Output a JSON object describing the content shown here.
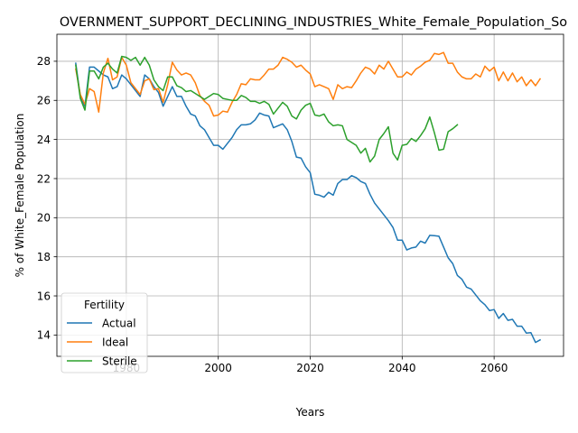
{
  "chart_data": {
    "type": "line",
    "title": "OVERNMENT_SUPPORT_DECLINING_INDUSTRIES_White_Female_Population_So",
    "xlabel": "Years",
    "ylabel": "% of White_Female Population",
    "xlim": [
      1964.9,
      2075.1
    ],
    "ylim": [
      12.91,
      29.38
    ],
    "xticks": [
      1980,
      2000,
      2020,
      2040,
      2060
    ],
    "yticks": [
      14,
      16,
      18,
      20,
      22,
      24,
      26,
      28
    ],
    "grid": true,
    "legend": {
      "title": "Fertility",
      "position": "lower left"
    },
    "series": [
      {
        "name": "Actual",
        "color": "#1f77b4",
        "x": [
          1969,
          1970,
          1971,
          1972,
          1973,
          1974,
          1975,
          1976,
          1977,
          1978,
          1979,
          1980,
          1981,
          1982,
          1983,
          1984,
          1985,
          1986,
          1987,
          1988,
          1989,
          1990,
          1991,
          1992,
          1993,
          1994,
          1995,
          1996,
          1997,
          1998,
          1999,
          2000,
          2001,
          2002,
          2003,
          2004,
          2005,
          2006,
          2007,
          2008,
          2009,
          2010,
          2011,
          2012,
          2013,
          2014,
          2015,
          2016,
          2017,
          2018,
          2019,
          2020,
          2021,
          2022,
          2023,
          2024,
          2025,
          2026,
          2027,
          2028,
          2029,
          2030,
          2031,
          2032,
          2033,
          2034,
          2035,
          2036,
          2037,
          2038,
          2039,
          2040,
          2041,
          2042,
          2043,
          2044,
          2045,
          2046,
          2047,
          2048,
          2049,
          2050,
          2051,
          2052,
          2053,
          2054,
          2055,
          2056,
          2057,
          2058,
          2059,
          2060,
          2061,
          2062,
          2063,
          2064,
          2065,
          2066,
          2067,
          2068,
          2069,
          2070
        ],
        "y": [
          27.9,
          26.2,
          25.7,
          27.7,
          27.7,
          27.5,
          27.3,
          27.2,
          26.6,
          26.7,
          27.3,
          27.1,
          26.8,
          26.5,
          26.2,
          27.3,
          27.1,
          26.7,
          26.4,
          25.7,
          26.2,
          26.7,
          26.2,
          26.2,
          25.7,
          25.3,
          25.2,
          24.7,
          24.5,
          24.1,
          23.7,
          23.7,
          23.5,
          23.8,
          24.1,
          24.5,
          24.75,
          24.75,
          24.8,
          25.0,
          25.35,
          25.25,
          25.2,
          24.6,
          24.7,
          24.8,
          24.5,
          23.9,
          23.1,
          23.05,
          22.6,
          22.3,
          21.2,
          21.15,
          21.05,
          21.3,
          21.15,
          21.75,
          21.95,
          21.95,
          22.15,
          22.05,
          21.85,
          21.75,
          21.2,
          20.75,
          20.45,
          20.15,
          19.85,
          19.5,
          18.85,
          18.85,
          18.35,
          18.45,
          18.5,
          18.8,
          18.7,
          19.1,
          19.08,
          19.05,
          18.5,
          17.95,
          17.65,
          17.05,
          16.85,
          16.45,
          16.35,
          16.05,
          15.75,
          15.55,
          15.25,
          15.3,
          14.85,
          15.1,
          14.75,
          14.8,
          14.45,
          14.45,
          14.1,
          14.12,
          13.62,
          13.75
        ]
      },
      {
        "name": "Ideal",
        "color": "#ff7f0e",
        "x": [
          1969,
          1970,
          1971,
          1972,
          1973,
          1974,
          1975,
          1976,
          1977,
          1978,
          1979,
          1980,
          1981,
          1982,
          1983,
          1984,
          1985,
          1986,
          1987,
          1988,
          1989,
          1990,
          1991,
          1992,
          1993,
          1994,
          1995,
          1996,
          1997,
          1998,
          1999,
          2000,
          2001,
          2002,
          2003,
          2004,
          2005,
          2006,
          2007,
          2008,
          2009,
          2010,
          2011,
          2012,
          2013,
          2014,
          2015,
          2016,
          2017,
          2018,
          2019,
          2020,
          2021,
          2022,
          2023,
          2024,
          2025,
          2026,
          2027,
          2028,
          2029,
          2030,
          2031,
          2032,
          2033,
          2034,
          2035,
          2036,
          2037,
          2038,
          2039,
          2040,
          2041,
          2042,
          2043,
          2044,
          2045,
          2046,
          2047,
          2048,
          2049,
          2050,
          2051,
          2052,
          2053,
          2054,
          2055,
          2056,
          2057,
          2058,
          2059,
          2060,
          2061,
          2062,
          2063,
          2064,
          2065,
          2066,
          2067,
          2068,
          2069,
          2070
        ],
        "y": [
          27.6,
          26.3,
          25.8,
          26.6,
          26.45,
          25.4,
          27.4,
          28.15,
          27.05,
          27.2,
          28.2,
          27.8,
          26.9,
          26.6,
          26.3,
          27.0,
          27.1,
          26.55,
          26.6,
          25.9,
          26.8,
          27.95,
          27.55,
          27.3,
          27.4,
          27.3,
          26.9,
          26.25,
          25.95,
          25.75,
          25.2,
          25.25,
          25.45,
          25.4,
          25.9,
          26.3,
          26.85,
          26.8,
          27.1,
          27.05,
          27.05,
          27.3,
          27.6,
          27.6,
          27.8,
          28.2,
          28.1,
          27.95,
          27.7,
          27.8,
          27.55,
          27.35,
          26.7,
          26.8,
          26.7,
          26.6,
          26.05,
          26.8,
          26.6,
          26.7,
          26.65,
          27.0,
          27.4,
          27.7,
          27.6,
          27.35,
          27.8,
          27.6,
          28.0,
          27.6,
          27.2,
          27.2,
          27.45,
          27.3,
          27.6,
          27.75,
          27.95,
          28.05,
          28.4,
          28.35,
          28.45,
          27.9,
          27.9,
          27.45,
          27.2,
          27.1,
          27.1,
          27.35,
          27.2,
          27.75,
          27.5,
          27.7,
          27.0,
          27.45,
          27.0,
          27.4,
          26.95,
          27.2,
          26.75,
          27.05,
          26.75,
          27.1
        ]
      },
      {
        "name": "Sterile",
        "color": "#2ca02c",
        "x": [
          1969,
          1970,
          1971,
          1972,
          1973,
          1974,
          1975,
          1976,
          1977,
          1978,
          1979,
          1980,
          1981,
          1982,
          1983,
          1984,
          1985,
          1986,
          1987,
          1988,
          1989,
          1990,
          1991,
          1992,
          1993,
          1994,
          1995,
          1996,
          1997,
          1998,
          1999,
          2000,
          2001,
          2002,
          2003,
          2004,
          2005,
          2006,
          2007,
          2008,
          2009,
          2010,
          2011,
          2012,
          2013,
          2014,
          2015,
          2016,
          2017,
          2018,
          2019,
          2020,
          2021,
          2022,
          2023,
          2024,
          2025,
          2026,
          2027,
          2028,
          2029,
          2030,
          2031,
          2032,
          2033,
          2034,
          2035,
          2036,
          2037,
          2038,
          2039,
          2040,
          2041,
          2042,
          2043,
          2044,
          2045,
          2046,
          2047,
          2048,
          2049,
          2050,
          2051,
          2052
        ],
        "y": [
          27.8,
          26.1,
          25.5,
          27.5,
          27.5,
          27.1,
          27.7,
          27.9,
          27.6,
          27.4,
          28.25,
          28.2,
          28.05,
          28.2,
          27.8,
          28.2,
          27.8,
          27.05,
          26.7,
          26.5,
          27.2,
          27.2,
          26.75,
          26.65,
          26.45,
          26.5,
          26.35,
          26.2,
          26.05,
          26.2,
          26.35,
          26.3,
          26.1,
          26.05,
          26.0,
          26.0,
          26.25,
          26.15,
          25.95,
          25.95,
          25.85,
          25.95,
          25.8,
          25.3,
          25.6,
          25.9,
          25.7,
          25.2,
          25.05,
          25.5,
          25.75,
          25.85,
          25.25,
          25.2,
          25.3,
          24.9,
          24.7,
          24.75,
          24.7,
          24.0,
          23.85,
          23.7,
          23.3,
          23.55,
          22.85,
          23.15,
          24.0,
          24.3,
          24.65,
          23.3,
          22.95,
          23.7,
          23.75,
          24.05,
          23.9,
          24.2,
          24.55,
          25.15,
          24.35,
          23.45,
          23.5,
          24.4,
          24.55,
          24.75
        ]
      }
    ]
  }
}
